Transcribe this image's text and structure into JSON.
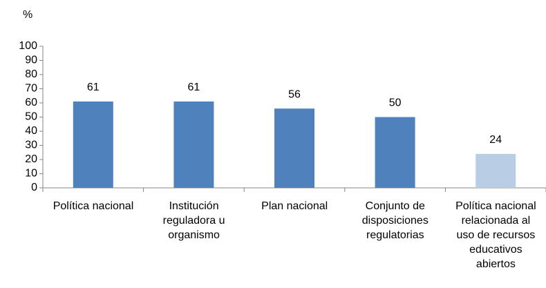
{
  "chart_data": {
    "type": "bar",
    "y_label": "%",
    "categories": [
      "Política nacional",
      "Institución\nreguladora u\norganismo",
      "Plan nacional",
      "Conjunto de\ndisposiciones\nregulatorias",
      "Política nacional\nrelacionada  al\nuso de recursos\neducativos\nabiertos"
    ],
    "values": [
      61,
      61,
      56,
      50,
      24
    ],
    "colors": [
      "#4f81bd",
      "#4f81bd",
      "#4f81bd",
      "#4f81bd",
      "#b9cde5"
    ],
    "ylim": [
      0,
      100
    ],
    "yticks": [
      0,
      10,
      20,
      30,
      40,
      50,
      60,
      70,
      80,
      90,
      100
    ],
    "grid": false
  }
}
